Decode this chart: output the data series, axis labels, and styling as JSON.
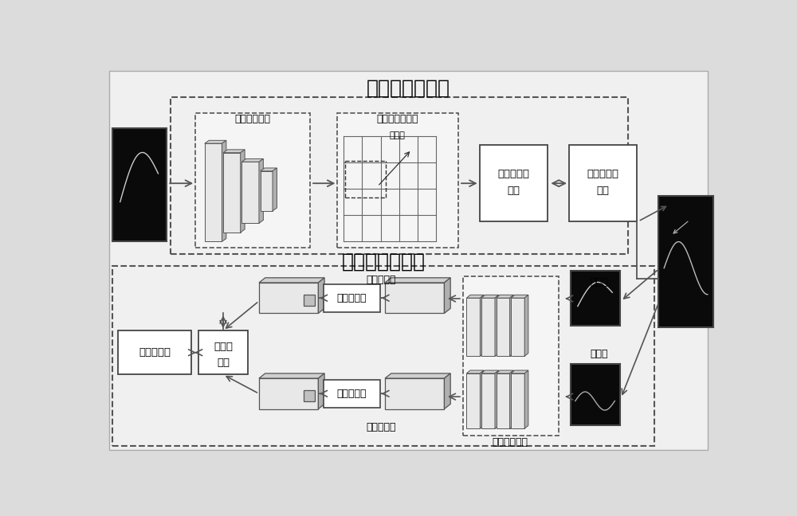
{
  "bg_color": "#e8e8e8",
  "white": "#ffffff",
  "light_gray": "#d8d8d8",
  "mid_gray": "#b0b0b0",
  "dark_gray": "#707070",
  "black": "#111111",
  "border": "#444444",
  "title_detect": "特征点检测网络",
  "title_track": "特征点跟踪网络",
  "label_feat_extract": "特征提取网络",
  "label_prior_box": "先验框生成模块",
  "label_candidate": "候选框",
  "label_predict": "预测特征点\n筛选",
  "label_result": "特征点提取\n结果",
  "label_template_feat": "模板帧特征",
  "label_search_feat": "搜索帧特征",
  "label_feat_net": "特征提取网络",
  "label_template_frame": "模板帧",
  "label_search_frame": "搜索帧",
  "label_attention1": "注意力机制",
  "label_attention2": "注意力机制",
  "label_cross_corr": "互相关\n操作",
  "label_response": "响应特征图"
}
